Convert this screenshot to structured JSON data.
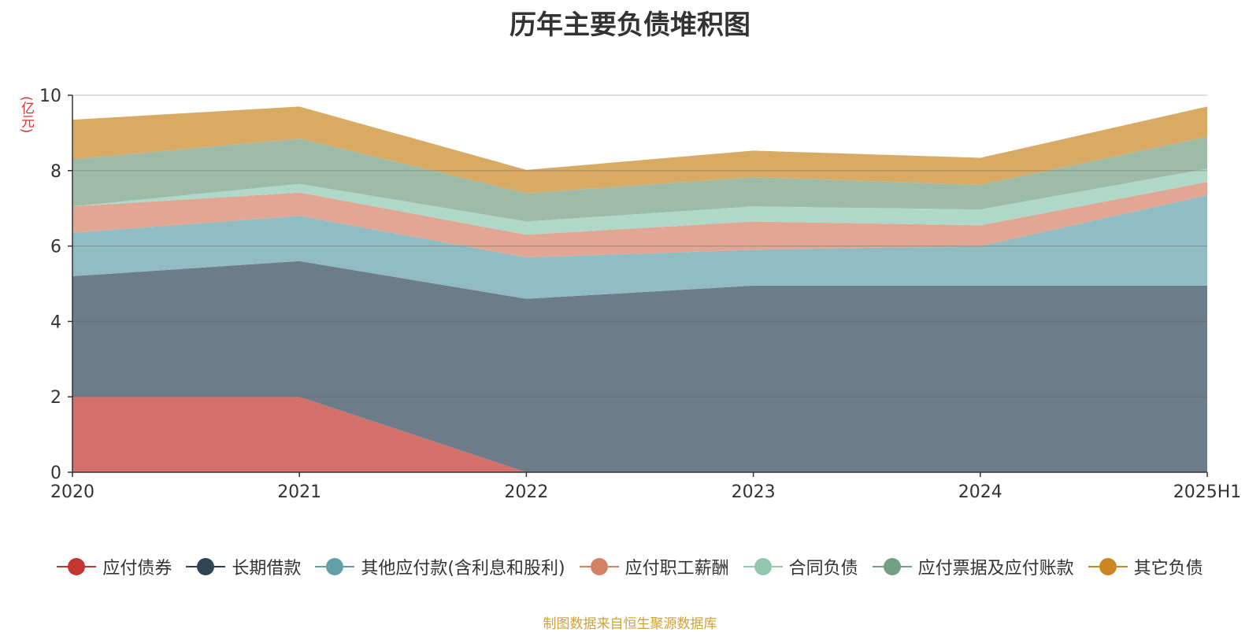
{
  "title": "历年主要负债堆积图",
  "unit_label": "(亿元)",
  "source_note": "制图数据来自恒生聚源数据库",
  "chart_data": {
    "type": "area",
    "stacked": true,
    "title": "历年主要负债堆积图",
    "ylabel": "(亿元)",
    "xlabel": "",
    "categories": [
      "2020",
      "2021",
      "2022",
      "2023",
      "2024",
      "2025H1"
    ],
    "ylim": [
      0,
      10
    ],
    "yticks": [
      0,
      2,
      4,
      6,
      8,
      10
    ],
    "grid": true,
    "legend_position": "bottom",
    "series": [
      {
        "name": "应付债券",
        "color": "#c23531",
        "fill": "#d4706c",
        "values": [
          2.0,
          2.0,
          0.0,
          0.0,
          0.0,
          0.0
        ]
      },
      {
        "name": "长期借款",
        "color": "#2f4554",
        "fill": "#6d7c89",
        "values": [
          3.2,
          3.6,
          4.6,
          4.95,
          4.95,
          4.95
        ]
      },
      {
        "name": "其他应付款(含利息和股利)",
        "color": "#61a0a8",
        "fill": "#90bcc2",
        "values": [
          1.15,
          1.2,
          1.1,
          0.95,
          1.05,
          2.4
        ]
      },
      {
        "name": "应付职工薪酬",
        "color": "#d48265",
        "fill": "#e2a694",
        "values": [
          0.7,
          0.62,
          0.6,
          0.75,
          0.55,
          0.35
        ]
      },
      {
        "name": "合同负债",
        "color": "#91c7ae",
        "fill": "#b0d8c8",
        "values": [
          0.0,
          0.23,
          0.35,
          0.4,
          0.42,
          0.35
        ]
      },
      {
        "name": "应付票据及应付账款",
        "color": "#749f83",
        "fill": "#9ebba8",
        "values": [
          1.25,
          1.2,
          0.75,
          0.78,
          0.65,
          0.85
        ]
      },
      {
        "name": "其它负债",
        "color": "#ca8622",
        "fill": "#d8aa64",
        "values": [
          1.05,
          0.85,
          0.62,
          0.7,
          0.72,
          0.8
        ]
      }
    ]
  }
}
